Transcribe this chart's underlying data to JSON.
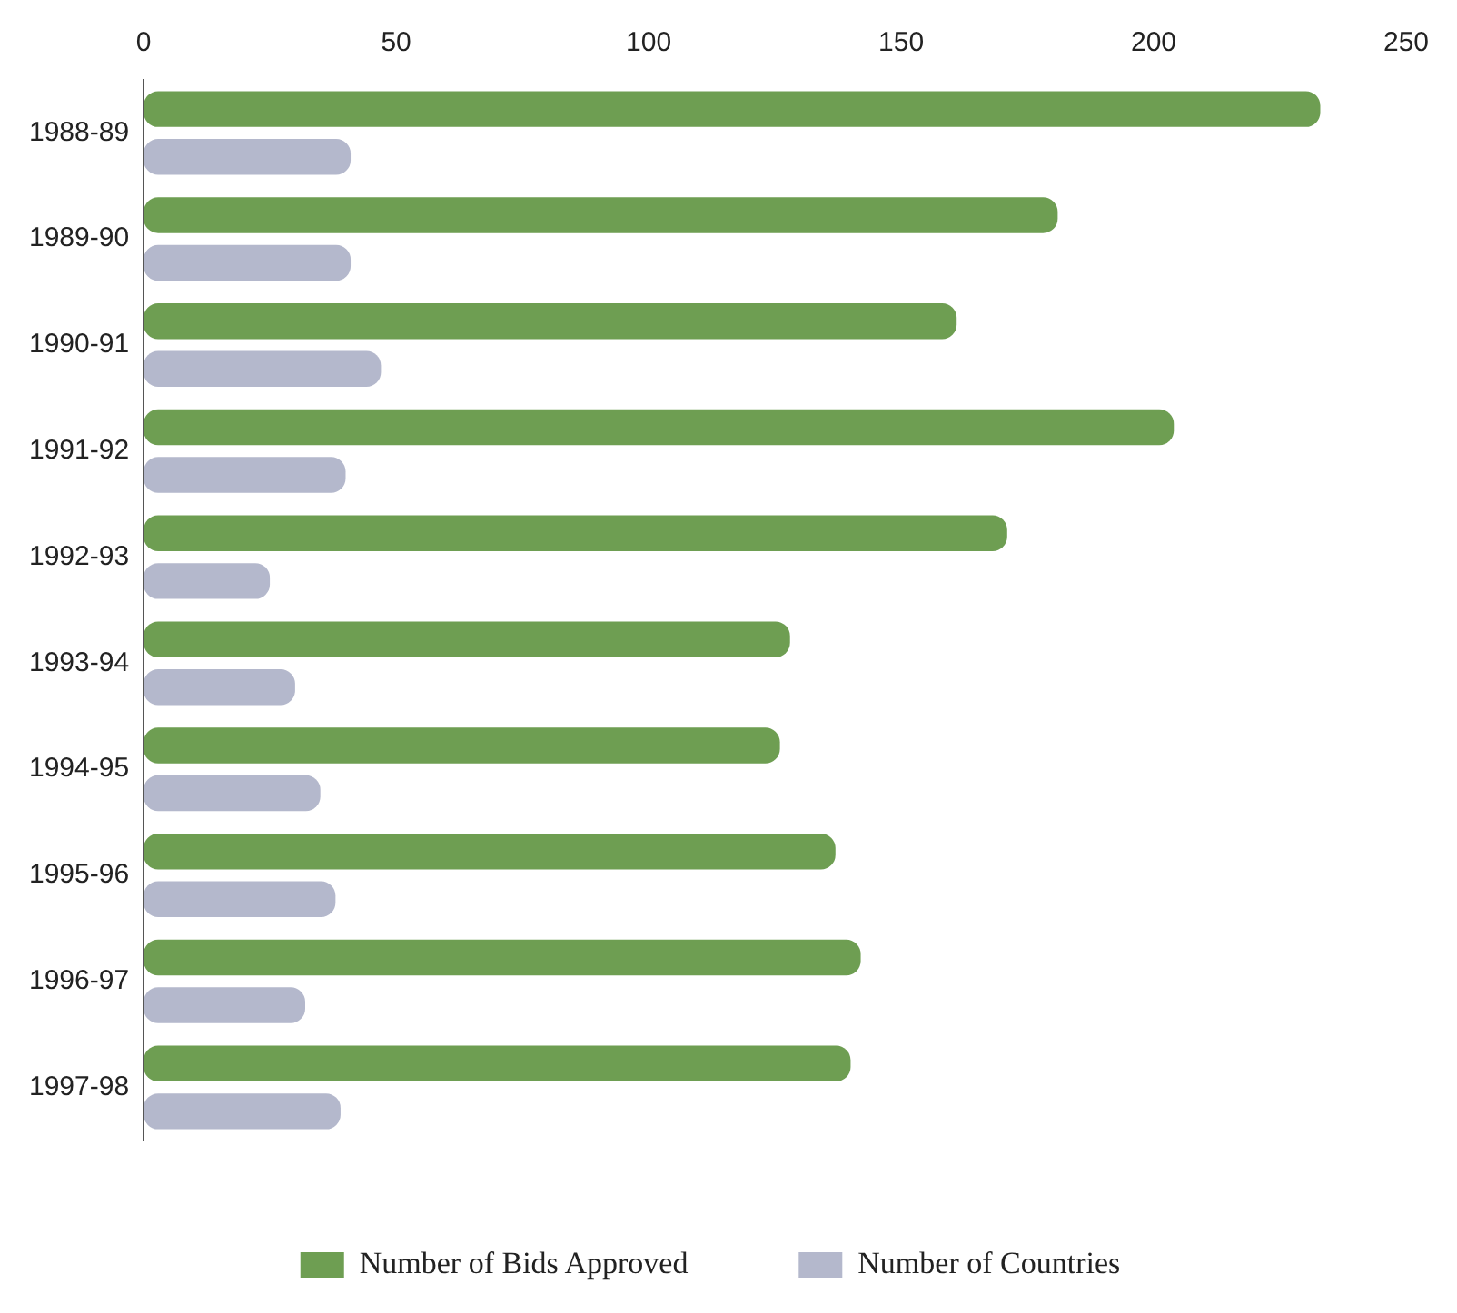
{
  "chart_data": {
    "type": "bar",
    "orientation": "horizontal",
    "categories": [
      "1988-89",
      "1989-90",
      "1990-91",
      "1991-92",
      "1992-93",
      "1993-94",
      "1994-95",
      "1995-96",
      "1996-97",
      "1997-98"
    ],
    "series": [
      {
        "name": "Number of Bids Approved",
        "color": "#6e9e52",
        "values": [
          233,
          181,
          161,
          204,
          171,
          128,
          126,
          137,
          142,
          140
        ]
      },
      {
        "name": "Number of Countries",
        "color": "#b4b8cc",
        "values": [
          41,
          41,
          47,
          40,
          25,
          30,
          35,
          38,
          32,
          39
        ]
      }
    ],
    "xlim": [
      0,
      250
    ],
    "xticks": [
      0,
      50,
      100,
      150,
      200,
      250
    ],
    "grid": false,
    "legend": "bottom"
  }
}
